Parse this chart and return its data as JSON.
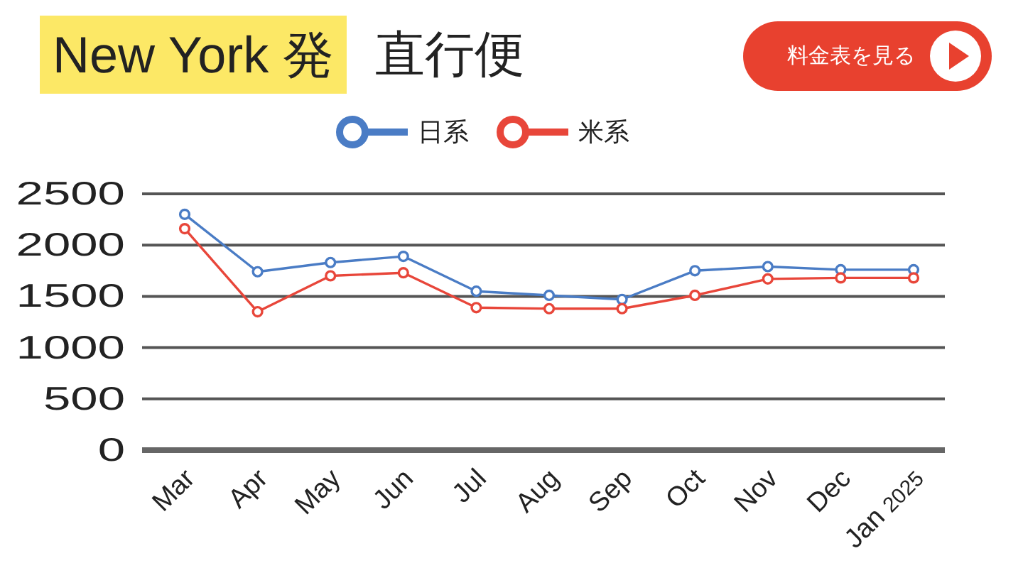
{
  "chart_data": {
    "type": "line",
    "title": "New York 発",
    "subtitle": "直行便",
    "annotations": [
      "料金表を見る"
    ],
    "categories": [
      "Mar",
      "Apr",
      "May",
      "Jun",
      "Jul",
      "Aug",
      "Sep",
      "Oct",
      "Nov",
      "Dec",
      "Jan 2025"
    ],
    "series": [
      {
        "name": "日系",
        "color": "#4a7cc5",
        "values": [
          2300,
          1740,
          1830,
          1890,
          1550,
          1510,
          1470,
          1750,
          1790,
          1760,
          1760
        ]
      },
      {
        "name": "米系",
        "color": "#e8463a",
        "values": [
          2160,
          1350,
          1700,
          1730,
          1390,
          1380,
          1380,
          1510,
          1670,
          1680,
          1680
        ]
      }
    ],
    "ylim": [
      0,
      2500
    ],
    "yticks": [
      0,
      500,
      1000,
      1500,
      2000,
      2500
    ],
    "grid": "y",
    "legend": "top",
    "marker": "circle",
    "line_style": "solid"
  }
}
